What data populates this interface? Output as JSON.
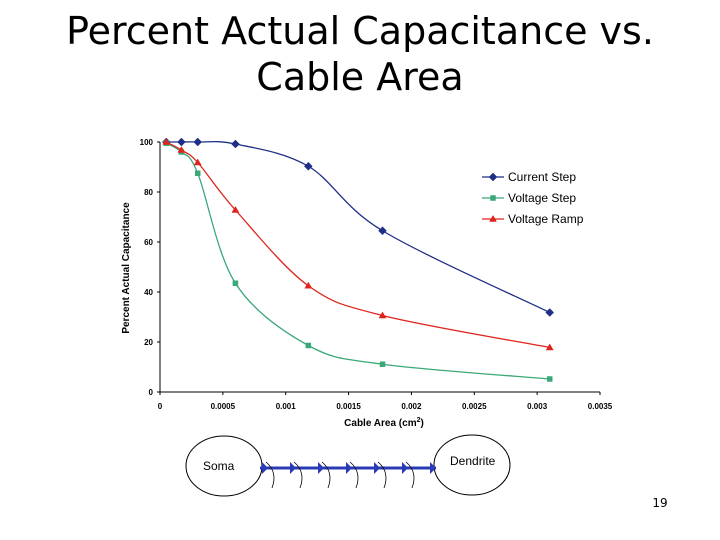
{
  "slide": {
    "title": "Percent Actual Capacitance vs. Cable Area",
    "page_number": "19"
  },
  "chart_data": {
    "type": "line",
    "xlabel": "Cable Area (cm",
    "xlabel_sup": "2",
    "xlabel_suffix": ")",
    "ylabel": "Percent Actual Capacitance",
    "xlim": [
      0,
      0.0035
    ],
    "ylim": [
      0,
      100
    ],
    "xticks": [
      "0",
      "0.0005",
      "0.001",
      "0.0015",
      "0.002",
      "0.0025",
      "0.003",
      "0.0035"
    ],
    "yticks": [
      "0",
      "20",
      "40",
      "60",
      "80",
      "100"
    ],
    "grid": false,
    "legend_position": "right",
    "series": [
      {
        "name": "Current Step",
        "color": "#1f2f86",
        "marker": "diamond",
        "x": [
          5e-05,
          0.00017,
          0.0003,
          0.0006,
          0.00118,
          0.00177,
          0.0031
        ],
        "y": [
          100,
          100,
          100,
          99.2,
          90.3,
          64.5,
          31.8
        ]
      },
      {
        "name": "Voltage Step",
        "color": "#3aa877",
        "marker": "square",
        "x": [
          5e-05,
          0.00017,
          0.0003,
          0.0006,
          0.00118,
          0.00177,
          0.0031
        ],
        "y": [
          99.5,
          96,
          87.5,
          43.5,
          18.6,
          11.1,
          5.2
        ]
      },
      {
        "name": "Voltage Ramp",
        "color": "#e0231c",
        "marker": "triangle",
        "x": [
          5e-05,
          0.00017,
          0.0003,
          0.0006,
          0.00118,
          0.00177,
          0.0031
        ],
        "y": [
          100,
          96.8,
          91.8,
          72.8,
          42.5,
          30.6,
          17.8
        ]
      }
    ]
  },
  "diagram": {
    "soma_label": "Soma",
    "dendrite_label": "Dendrite"
  }
}
